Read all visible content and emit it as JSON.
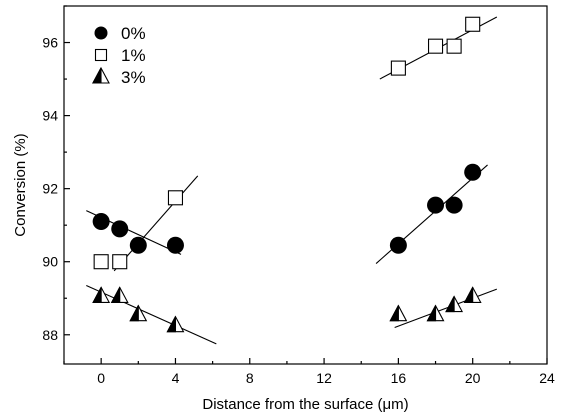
{
  "chart_data": {
    "type": "scatter",
    "xlabel_prefix": "Distance from the surface (",
    "xlabel_unit": "μm",
    "xlabel_suffix": ")",
    "ylabel": "Conversion (%)",
    "xlim": [
      -2,
      24
    ],
    "ylim": [
      87.2,
      97.0
    ],
    "x_ticks": [
      0,
      4,
      8,
      12,
      16,
      20,
      24
    ],
    "y_ticks": [
      88,
      90,
      92,
      94,
      96
    ],
    "legend_position": "top-left",
    "series": [
      {
        "name": "0%",
        "marker": "filled-circle",
        "points": [
          [
            0,
            91.1
          ],
          [
            1,
            90.9
          ],
          [
            2,
            90.45
          ],
          [
            4,
            90.45
          ],
          [
            16,
            90.45
          ],
          [
            18,
            91.55
          ],
          [
            19,
            91.55
          ],
          [
            20,
            92.45
          ]
        ],
        "fits": [
          {
            "x": [
              -0.8,
              4.3
            ],
            "y": [
              91.4,
              90.2
            ]
          },
          {
            "x": [
              14.8,
              20.8
            ],
            "y": [
              89.95,
              92.65
            ]
          }
        ]
      },
      {
        "name": "1%",
        "marker": "open-square",
        "points": [
          [
            0,
            90.0
          ],
          [
            1,
            90.0
          ],
          [
            4,
            91.75
          ],
          [
            16,
            95.3
          ],
          [
            18,
            95.9
          ],
          [
            19,
            95.9
          ],
          [
            20,
            96.5
          ]
        ],
        "fits": [
          {
            "x": [
              0.7,
              5.2
            ],
            "y": [
              89.75,
              92.35
            ]
          },
          {
            "x": [
              15.0,
              21.3
            ],
            "y": [
              95.0,
              96.7
            ]
          }
        ]
      },
      {
        "name": "3%",
        "marker": "half-filled-triangle",
        "points": [
          [
            0,
            89.05
          ],
          [
            1,
            89.05
          ],
          [
            2,
            88.55
          ],
          [
            4,
            88.25
          ],
          [
            16,
            88.55
          ],
          [
            18,
            88.55
          ],
          [
            19,
            88.8
          ],
          [
            20,
            89.05
          ]
        ],
        "fits": [
          {
            "x": [
              -0.8,
              6.2
            ],
            "y": [
              89.35,
              87.75
            ]
          },
          {
            "x": [
              15.8,
              21.3
            ],
            "y": [
              88.2,
              89.25
            ]
          }
        ]
      }
    ]
  }
}
